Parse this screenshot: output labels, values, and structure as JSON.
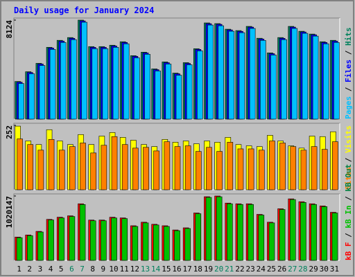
{
  "chart_data": [
    {
      "type": "bar",
      "title": "Daily usage for January 2024",
      "ylim": [
        0,
        8124
      ],
      "yticks": [
        8124
      ],
      "legend_reversed": true,
      "legend_separator": " / ",
      "series": [
        {
          "name": "Hits",
          "color": "#00805c",
          "values": [
            3089,
            3890,
            4577,
            5893,
            6465,
            6694,
            8124,
            5950,
            5950,
            6064,
            6350,
            5206,
            5492,
            4119,
            4691,
            3776,
            4634,
            5778,
            7895,
            7838,
            7380,
            7266,
            7609,
            6636,
            5435,
            6694,
            7609,
            7209,
            6980,
            6350,
            6465
          ]
        },
        {
          "name": "Files",
          "color": "#0000ff",
          "values": [
            3030,
            3830,
            4520,
            5830,
            6400,
            6630,
            8060,
            5890,
            5890,
            6000,
            6290,
            5150,
            5430,
            4060,
            4630,
            3720,
            4570,
            5720,
            7830,
            7780,
            7320,
            7200,
            7550,
            6570,
            5370,
            6630,
            7550,
            7150,
            6920,
            6290,
            6400
          ]
        },
        {
          "name": "Pages",
          "color": "#00c0ff",
          "values": [
            2920,
            3720,
            4400,
            5720,
            6290,
            6520,
            7950,
            5780,
            5780,
            5890,
            6180,
            5030,
            5320,
            3950,
            4520,
            3600,
            4460,
            5600,
            7720,
            7660,
            7210,
            7090,
            7440,
            6460,
            5260,
            6520,
            7440,
            7040,
            6810,
            6180,
            6290
          ]
        }
      ]
    },
    {
      "type": "bar",
      "ylim": [
        0,
        252
      ],
      "yticks": [
        252
      ],
      "legend_reversed": true,
      "legend_separator": " / ",
      "series": [
        {
          "name": "Visits",
          "color": "#ffff00",
          "values": [
            249,
            191,
            177,
            235,
            191,
            177,
            216,
            177,
            210,
            224,
            205,
            194,
            177,
            169,
            197,
            186,
            191,
            180,
            191,
            186,
            205,
            177,
            172,
            169,
            213,
            191,
            172,
            163,
            210,
            208,
            227
          ]
        },
        {
          "name": "Sites",
          "color": "#ff8000",
          "values": [
            199,
            177,
            155,
            197,
            155,
            169,
            183,
            144,
            174,
            208,
            177,
            163,
            166,
            152,
            188,
            169,
            172,
            150,
            166,
            150,
            186,
            160,
            160,
            155,
            191,
            183,
            169,
            155,
            169,
            158,
            188
          ]
        }
      ]
    },
    {
      "type": "bar",
      "ylim": [
        0,
        1020147
      ],
      "yticks": [
        1020147
      ],
      "legend_reversed": false,
      "legend_separator": " / ",
      "categories": [
        "1",
        "2",
        "3",
        "4",
        "5",
        "6",
        "7",
        "8",
        "9",
        "10",
        "11",
        "12",
        "13",
        "14",
        "15",
        "16",
        "17",
        "18",
        "19",
        "20",
        "21",
        "22",
        "23",
        "24",
        "25",
        "26",
        "27",
        "28",
        "29",
        "30",
        "31"
      ],
      "highlight_categories": [
        "6",
        "7",
        "13",
        "14",
        "20",
        "21",
        "27",
        "28"
      ],
      "highlight_color": "#00805c",
      "series": [
        {
          "name": "kB F",
          "color": "#ff0000",
          "values": [
            370000,
            403000,
            460000,
            650000,
            684000,
            706000,
            897000,
            639000,
            639000,
            684000,
            673000,
            549000,
            605000,
            572000,
            549000,
            482000,
            516000,
            751000,
            1009000,
            1020147,
            908000,
            897000,
            897000,
            729000,
            605000,
            818000,
            975000,
            930000,
            897000,
            863000,
            762000
          ]
        },
        {
          "name": "kB In",
          "color": "#00c000",
          "values": [
            360000,
            392000,
            450000,
            640000,
            672000,
            695000,
            885000,
            628000,
            628000,
            672000,
            662000,
            538000,
            594000,
            561000,
            538000,
            471000,
            505000,
            740000,
            998000,
            1008000,
            897000,
            886000,
            886000,
            718000,
            594000,
            806000,
            964000,
            918000,
            886000,
            852000,
            751000
          ]
        },
        {
          "name": "kB Out",
          "color": "#008040",
          "values": [
            null,
            null,
            null,
            null,
            null,
            null,
            null,
            null,
            null,
            null,
            null,
            null,
            null,
            null,
            null,
            null,
            null,
            null,
            null,
            null,
            null,
            null,
            null,
            null,
            null,
            null,
            null,
            null,
            null,
            null,
            null
          ]
        }
      ]
    }
  ]
}
